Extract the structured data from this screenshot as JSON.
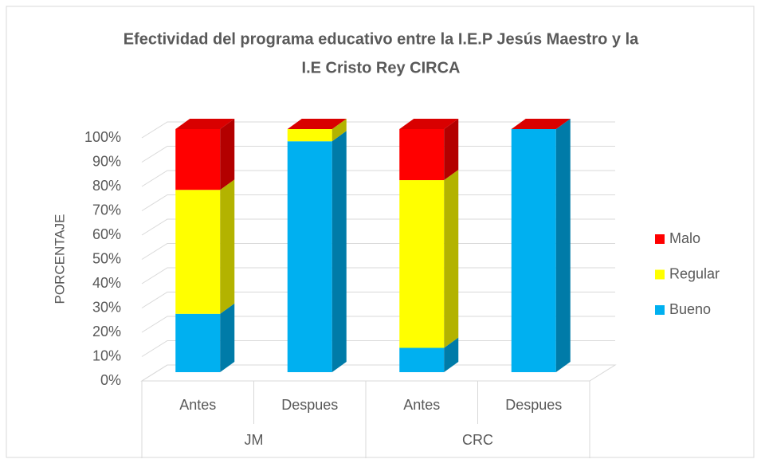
{
  "chart_data": {
    "type": "bar3d_stacked",
    "title": "Efectividad del programa educativo entre la I.E.P Jesús Maestro y la",
    "title_line2": "I.E Cristo Rey CIRCA",
    "y_label": "PORCENTAJE",
    "categories": [
      "Antes",
      "Despues",
      "Antes",
      "Despues"
    ],
    "groups": [
      "JM",
      "CRC"
    ],
    "series": [
      {
        "name": "Bueno",
        "color": "#00b0f0",
        "values": [
          24,
          95,
          10,
          100
        ]
      },
      {
        "name": "Regular",
        "color": "#ffff00",
        "values": [
          51,
          5,
          69,
          0
        ]
      },
      {
        "name": "Malo",
        "color": "#ff0000",
        "values": [
          25,
          0,
          21,
          0
        ]
      }
    ],
    "ylim": [
      0,
      100
    ],
    "yticks": [
      {
        "value": 0,
        "label": "0%"
      },
      {
        "value": 10,
        "label": "10%"
      },
      {
        "value": 20,
        "label": "20%"
      },
      {
        "value": 30,
        "label": "30%"
      },
      {
        "value": 40,
        "label": "40%"
      },
      {
        "value": 50,
        "label": "50%"
      },
      {
        "value": 60,
        "label": "60%"
      },
      {
        "value": 70,
        "label": "70%"
      },
      {
        "value": 80,
        "label": "80%"
      },
      {
        "value": 90,
        "label": "90%"
      },
      {
        "value": 100,
        "label": "100%"
      }
    ],
    "grid": true,
    "legend": "right"
  }
}
